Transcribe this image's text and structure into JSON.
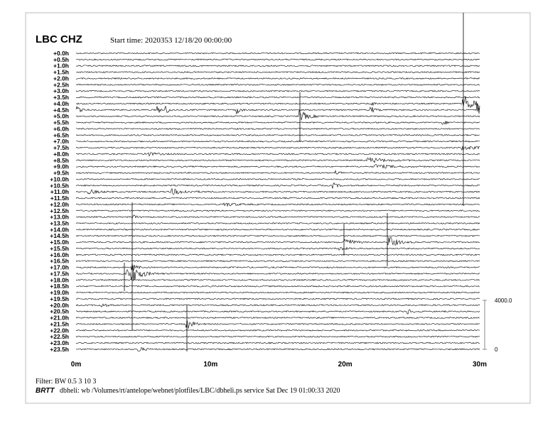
{
  "header": {
    "station": "LBC CHZ",
    "start_time": "Start time: 2020353 12/18/20 00:00:00"
  },
  "rows": [
    "+0.0h",
    "+0.5h",
    "+1.0h",
    "+1.5h",
    "+2.0h",
    "+2.5h",
    "+3.0h",
    "+3.5h",
    "+4.0h",
    "+4.5h",
    "+5.0h",
    "+5.5h",
    "+6.0h",
    "+6.5h",
    "+7.0h",
    "+7.5h",
    "+8.0h",
    "+8.5h",
    "+9.0h",
    "+9.5h",
    "+10.0h",
    "+10.5h",
    "+11.0h",
    "+11.5h",
    "+12.0h",
    "+12.5h",
    "+13.0h",
    "+13.5h",
    "+14.0h",
    "+14.5h",
    "+15.0h",
    "+15.5h",
    "+16.0h",
    "+16.5h",
    "+17.0h",
    "+17.5h",
    "+18.0h",
    "+18.5h",
    "+19.0h",
    "+19.5h",
    "+20.0h",
    "+20.5h",
    "+21.0h",
    "+21.5h",
    "+22.0h",
    "+22.5h",
    "+23.0h",
    "+23.5h"
  ],
  "x_axis": [
    "0m",
    "10m",
    "20m",
    "30m"
  ],
  "scale": {
    "top": "4000.0",
    "bottom": "0"
  },
  "footer": {
    "filter": "Filter: BW 0.5 3 10 3",
    "brand": "BRTT",
    "command": "dbheli: wb /Volumes/rt/antelope/webnet/plotfiles/LBC/dbheli.ps service Sat Dec 19 01:00:33 2020"
  }
}
